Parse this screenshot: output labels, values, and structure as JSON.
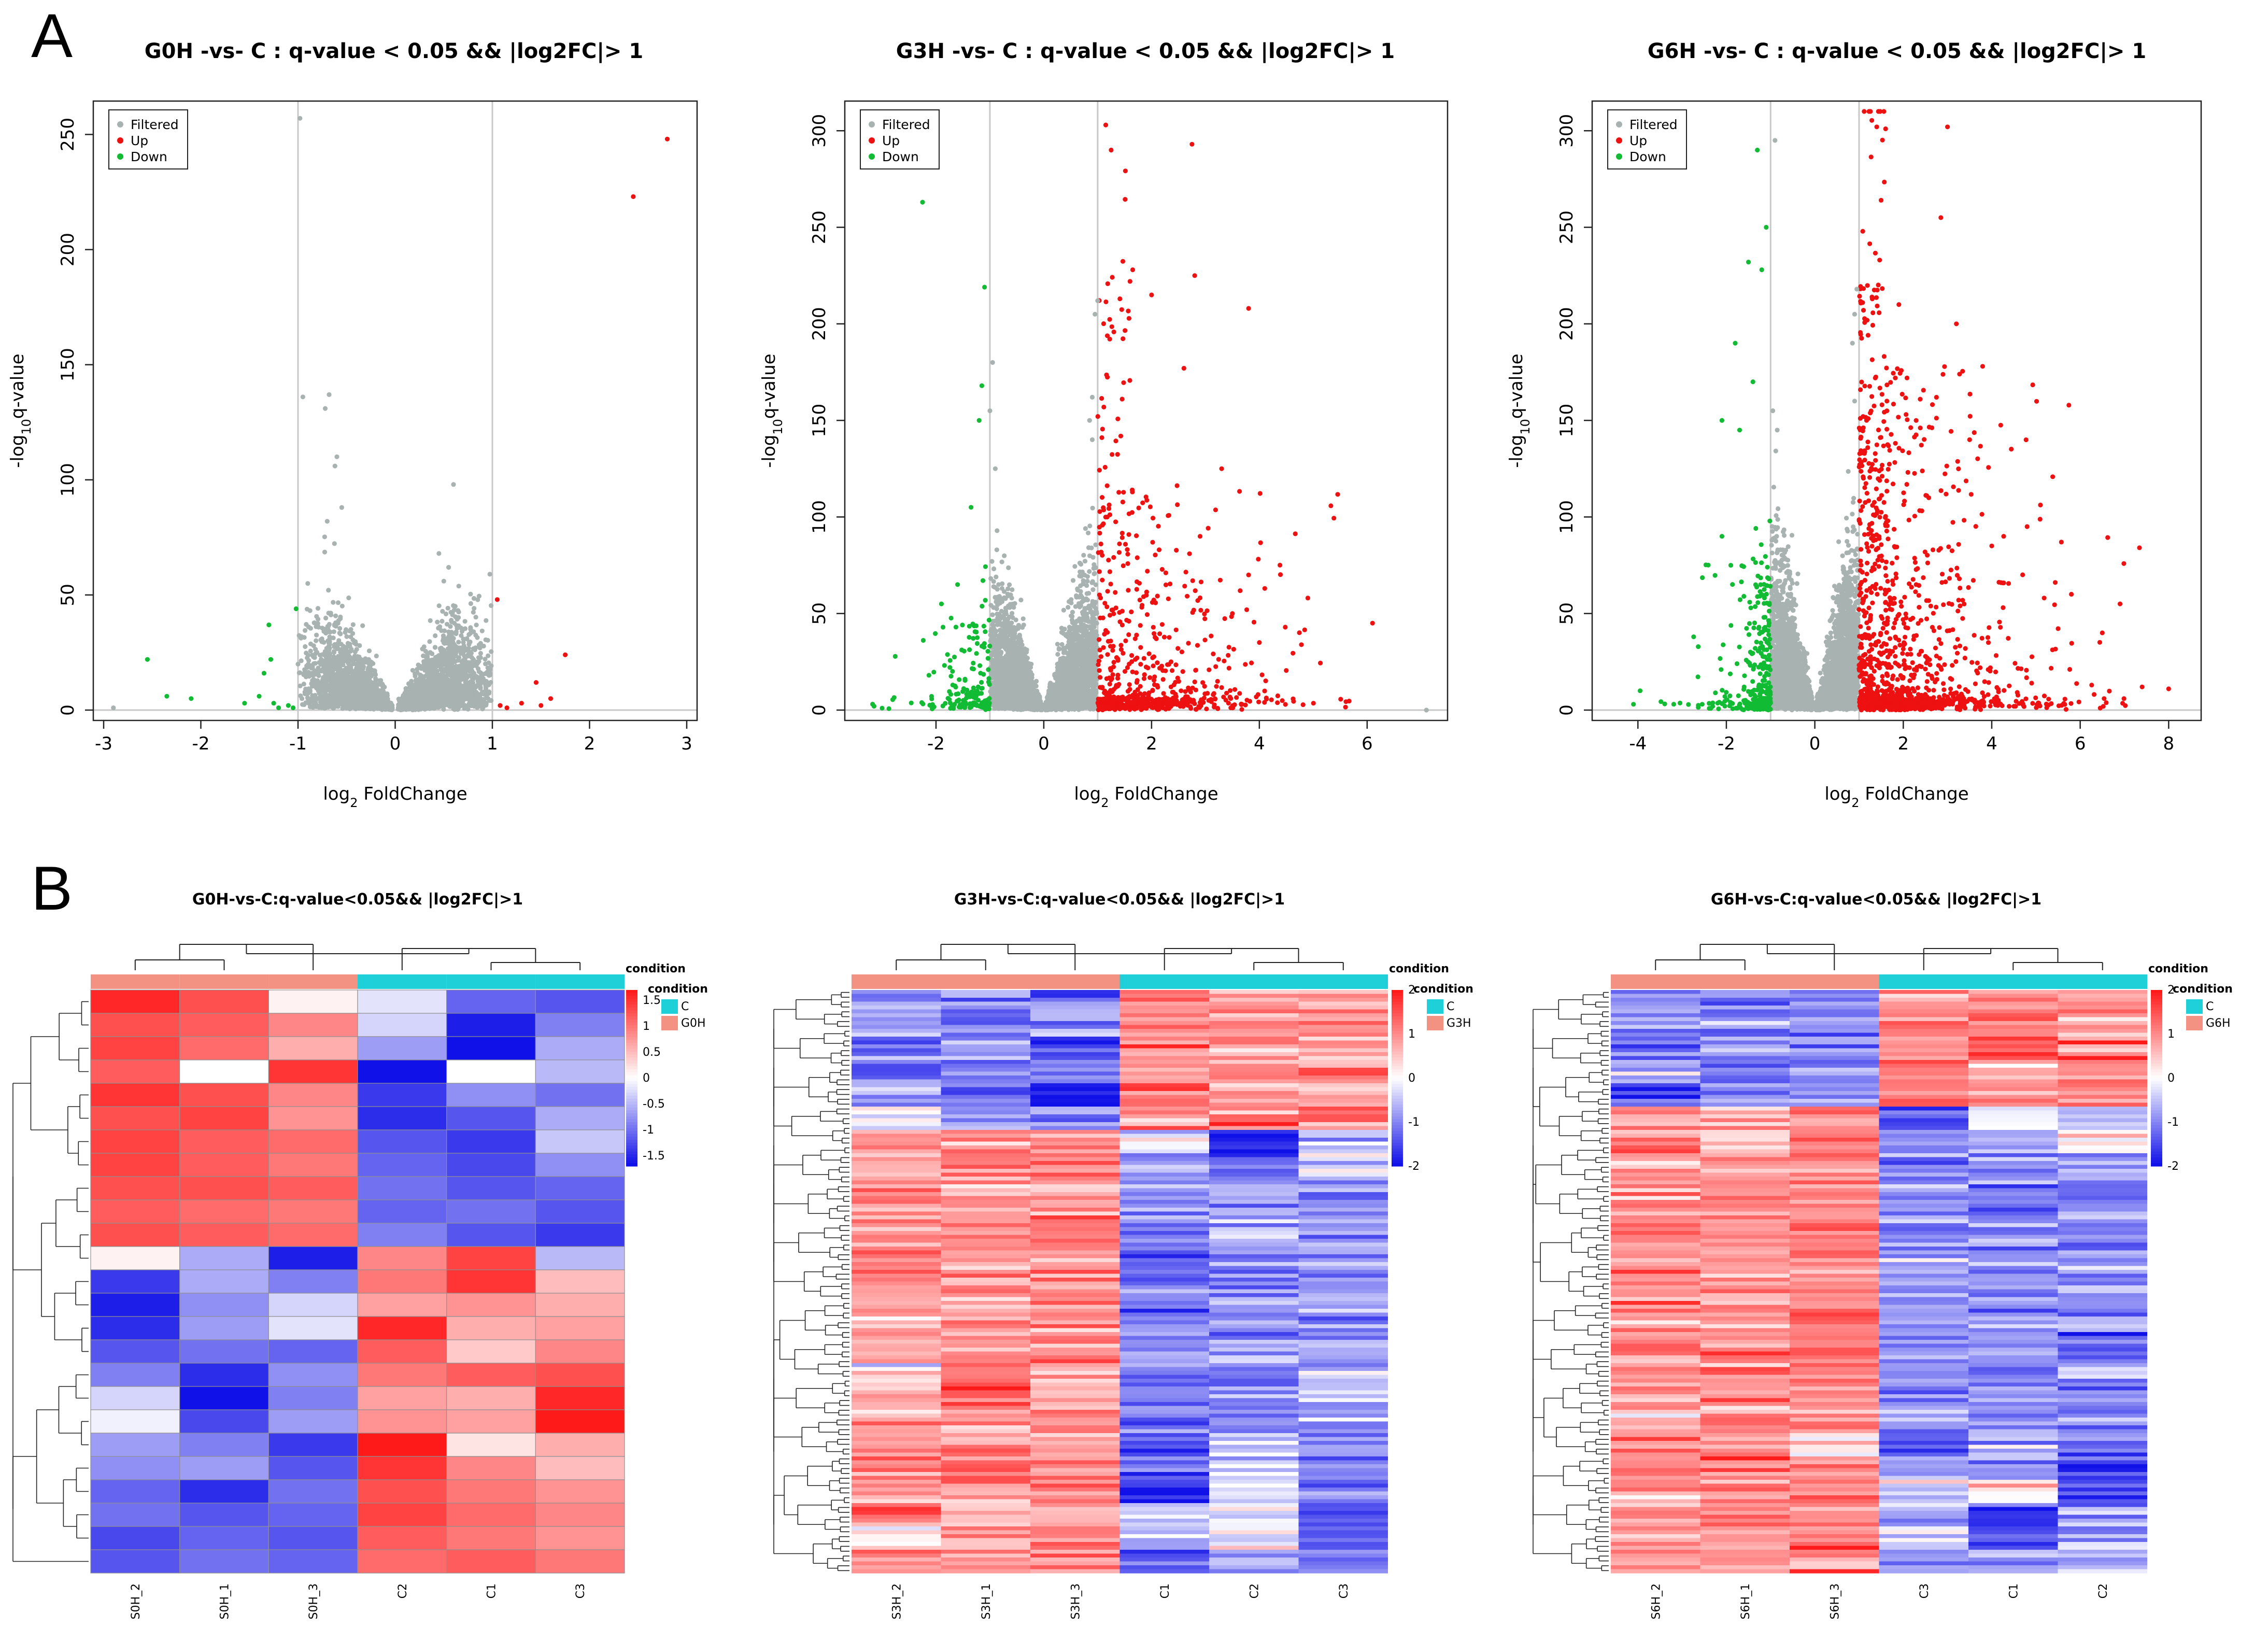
{
  "panel_labels": {
    "a": "A",
    "b": "B"
  },
  "colors": {
    "filtered": "#a8b2b0",
    "up": "#ee1111",
    "down": "#11bb33",
    "cond_C": "#1fd0d8",
    "cond_G": "#f39183",
    "high": "#ff1a1a",
    "mid": "#ffffff",
    "low": "#1010e8"
  },
  "chart_data": [
    {
      "type": "scatter",
      "title": "G0H -vs- C : q-value < 0.05 && |log2FC|> 1",
      "xlabel": "log",
      "xlabel_sub": "2",
      "xlabel_rest": " FoldChange",
      "ylabel_pre": "-log",
      "ylabel_sub": "10",
      "ylabel_rest": "q-value",
      "xlim": [
        -3,
        3
      ],
      "ylim": [
        0,
        260
      ],
      "xticks": [
        -3,
        -2,
        -1,
        0,
        1,
        2,
        3
      ],
      "yticks": [
        0,
        50,
        100,
        150,
        200,
        250
      ],
      "threshold_lines": [
        -1,
        1
      ],
      "legend": [
        "Filtered",
        "Up",
        "Down"
      ],
      "up_points": [
        [
          2.8,
          248
        ],
        [
          2.45,
          223
        ],
        [
          1.75,
          24
        ],
        [
          1.45,
          12
        ],
        [
          1.05,
          48
        ],
        [
          1.6,
          5
        ],
        [
          1.3,
          3
        ],
        [
          1.5,
          2
        ],
        [
          1.15,
          1
        ],
        [
          1.08,
          2
        ]
      ],
      "down_points": [
        [
          -2.55,
          22
        ],
        [
          -2.35,
          6
        ],
        [
          -2.1,
          5
        ],
        [
          -1.3,
          37
        ],
        [
          -1.28,
          22
        ],
        [
          -1.35,
          16
        ],
        [
          -1.4,
          6
        ],
        [
          -1.25,
          3
        ],
        [
          -1.2,
          1
        ],
        [
          -1.55,
          3
        ],
        [
          -1.1,
          2
        ],
        [
          -1.05,
          1
        ],
        [
          -1.02,
          44
        ]
      ],
      "filtered_points": [
        [
          -0.98,
          257
        ],
        [
          -0.95,
          136
        ],
        [
          -0.68,
          137
        ],
        [
          -0.72,
          131
        ],
        [
          -0.6,
          110
        ],
        [
          -0.62,
          106
        ],
        [
          0.6,
          98
        ],
        [
          0.45,
          68
        ],
        [
          -0.55,
          88
        ],
        [
          -0.7,
          82
        ],
        [
          -0.9,
          55
        ],
        [
          0.5,
          56
        ],
        [
          0.55,
          62
        ],
        [
          -1.0,
          20
        ],
        [
          -2.9,
          1
        ]
      ],
      "cloud": {
        "seed": 11,
        "n": 3000,
        "lobes": [
          -0.45,
          0.45
        ],
        "spread": 0.3,
        "min_abs": 0.03,
        "max_abs": 0.99,
        "ymax_at": 0.55,
        "height": 42
      }
    },
    {
      "type": "scatter",
      "title": "G3H -vs- C : q-value < 0.05 && |log2FC|> 1",
      "xlabel": "log",
      "xlabel_sub": "2",
      "xlabel_rest": " FoldChange",
      "ylabel_pre": "-log",
      "ylabel_sub": "10",
      "ylabel_rest": "q-value",
      "xlim": [
        -3.5,
        7.3
      ],
      "ylim": [
        0,
        310
      ],
      "xticks": [
        -2,
        0,
        2,
        4,
        6
      ],
      "yticks": [
        0,
        50,
        100,
        150,
        200,
        250,
        300
      ],
      "threshold_lines": [
        -1,
        1
      ],
      "legend": [
        "Filtered",
        "Up",
        "Down"
      ],
      "up_points": [
        [
          1.15,
          303
        ],
        [
          1.25,
          290
        ],
        [
          2.75,
          293
        ],
        [
          2.8,
          225
        ],
        [
          1.65,
          228
        ],
        [
          1.6,
          222
        ],
        [
          3.8,
          208
        ],
        [
          2.0,
          215
        ],
        [
          3.3,
          125
        ],
        [
          4.1,
          63
        ],
        [
          3.8,
          70
        ],
        [
          4.9,
          58
        ],
        [
          6.1,
          45
        ],
        [
          4.0,
          35
        ],
        [
          2.9,
          90
        ],
        [
          3.5,
          50
        ],
        [
          2.6,
          177
        ]
      ],
      "down_points": [
        [
          -2.25,
          263
        ],
        [
          -1.1,
          219
        ],
        [
          -1.15,
          168
        ],
        [
          -1.2,
          150
        ],
        [
          -1.35,
          105
        ],
        [
          -1.6,
          65
        ],
        [
          -1.9,
          55
        ],
        [
          -3.15,
          2
        ],
        [
          -3.0,
          1
        ]
      ],
      "filtered_points": [
        [
          1.0,
          212
        ],
        [
          0.95,
          205
        ],
        [
          0.9,
          162
        ],
        [
          0.85,
          150
        ],
        [
          0.9,
          140
        ],
        [
          -0.95,
          180
        ],
        [
          -1.0,
          155
        ],
        [
          -0.9,
          125
        ],
        [
          7.1,
          0
        ]
      ],
      "cloud": {
        "seed": 23,
        "n": 4200,
        "lobes": [
          -0.55,
          0.55
        ],
        "spread": 0.35,
        "min_abs": 0.03,
        "max_abs": 0.99,
        "ymax_at": 0.8,
        "height": 70
      },
      "up_cloud": {
        "seed": 31,
        "n": 700,
        "xmin": 1.0,
        "xmax": 6.0,
        "decay": 1.2,
        "height": 70
      },
      "down_cloud": {
        "seed": 37,
        "n": 170,
        "xmin": -3.2,
        "xmax": -1.0,
        "decay": 0.8,
        "height": 45
      }
    },
    {
      "type": "scatter",
      "title": "G6H -vs- C : q-value < 0.05 && |log2FC|> 1",
      "xlabel": "log",
      "xlabel_sub": "2",
      "xlabel_rest": " FoldChange",
      "ylabel_pre": "-log",
      "ylabel_sub": "10",
      "ylabel_rest": "q-value",
      "xlim": [
        -4.8,
        8.5
      ],
      "ylim": [
        0,
        310
      ],
      "xticks": [
        -4,
        -2,
        0,
        2,
        4,
        6,
        8
      ],
      "yticks": [
        0,
        50,
        100,
        150,
        200,
        250,
        300
      ],
      "threshold_lines": [
        -1,
        1
      ],
      "legend": [
        "Filtered",
        "Up",
        "Down"
      ],
      "up_points": [
        [
          1.4,
          302
        ],
        [
          1.6,
          301
        ],
        [
          3.0,
          302
        ],
        [
          2.85,
          255
        ],
        [
          1.9,
          210
        ],
        [
          3.2,
          200
        ],
        [
          3.5,
          140
        ],
        [
          4.8,
          95
        ],
        [
          4.0,
          85
        ],
        [
          6.9,
          55
        ],
        [
          5.8,
          60
        ],
        [
          6.5,
          40
        ],
        [
          7.4,
          12
        ],
        [
          8.0,
          11
        ]
      ],
      "down_points": [
        [
          -1.3,
          290
        ],
        [
          -1.1,
          250
        ],
        [
          -1.2,
          228
        ],
        [
          -1.5,
          232
        ],
        [
          -1.8,
          190
        ],
        [
          -1.4,
          170
        ],
        [
          -2.1,
          150
        ],
        [
          -1.7,
          145
        ],
        [
          -2.1,
          90
        ],
        [
          -1.9,
          75
        ],
        [
          -3.95,
          10
        ],
        [
          -4.1,
          3
        ]
      ],
      "filtered_points": [
        [
          -0.9,
          295
        ],
        [
          0.95,
          218
        ],
        [
          0.9,
          205
        ],
        [
          0.85,
          190
        ],
        [
          -0.95,
          155
        ],
        [
          -0.85,
          145
        ],
        [
          0.9,
          160
        ]
      ],
      "cloud": {
        "seed": 41,
        "n": 4600,
        "lobes": [
          -0.6,
          0.6
        ],
        "spread": 0.33,
        "min_abs": 0.03,
        "max_abs": 0.99,
        "ymax_at": 0.85,
        "height": 90
      },
      "up_cloud": {
        "seed": 53,
        "n": 1300,
        "xmin": 1.0,
        "xmax": 8.0,
        "decay": 1.3,
        "height": 110
      },
      "down_cloud": {
        "seed": 59,
        "n": 300,
        "xmin": -4.0,
        "xmax": -1.0,
        "decay": 0.7,
        "height": 75
      }
    },
    {
      "type": "heatmap",
      "title": "G0H-vs-C:q-value<0.05&& |log2FC|>1",
      "legend_title": "condition",
      "legend_entries": [
        "C",
        "G0H"
      ],
      "samples": [
        "S0H_2",
        "S0H_1",
        "S0H_3",
        "C2",
        "C1",
        "C3"
      ],
      "sample_groups": [
        "G",
        "G",
        "G",
        "C",
        "C",
        "C"
      ],
      "scale_ticks": [
        1.5,
        1,
        0.5,
        0,
        -0.5,
        -1,
        -1.5
      ],
      "scale_labels": [
        "1.5",
        "1",
        "0.5",
        "0",
        "-0.5",
        "-1",
        "-1.5"
      ],
      "zlim": [
        -1.7,
        1.7
      ],
      "values": [
        [
          1.6,
          1.3,
          0.1,
          -0.2,
          -1.1,
          -1.2
        ],
        [
          1.3,
          1.2,
          0.9,
          -0.3,
          -1.6,
          -0.9
        ],
        [
          1.4,
          1.1,
          0.6,
          -0.7,
          -1.7,
          -0.6
        ],
        [
          1.2,
          0.0,
          1.5,
          -1.8,
          0.0,
          -0.5
        ],
        [
          1.5,
          1.3,
          0.9,
          -1.4,
          -0.8,
          -1.0
        ],
        [
          1.3,
          1.4,
          0.8,
          -1.5,
          -1.2,
          -0.6
        ],
        [
          1.4,
          1.2,
          1.1,
          -1.2,
          -1.4,
          -0.4
        ],
        [
          1.4,
          1.2,
          1.0,
          -1.1,
          -1.3,
          -0.8
        ],
        [
          1.3,
          1.3,
          1.2,
          -1.0,
          -1.2,
          -1.1
        ],
        [
          1.2,
          1.1,
          1.0,
          -1.1,
          -1.0,
          -1.2
        ],
        [
          1.3,
          1.2,
          1.1,
          -0.9,
          -1.2,
          -1.4
        ],
        [
          0.1,
          -0.6,
          -1.6,
          0.9,
          1.4,
          -0.5
        ],
        [
          -1.4,
          -0.6,
          -0.9,
          1.0,
          1.5,
          0.5
        ],
        [
          -1.6,
          -0.8,
          -0.3,
          0.7,
          0.8,
          0.6
        ],
        [
          -1.5,
          -0.7,
          -0.2,
          1.6,
          0.6,
          0.7
        ],
        [
          -1.2,
          -1.0,
          -1.1,
          1.2,
          0.4,
          0.9
        ],
        [
          -0.9,
          -1.5,
          -0.8,
          1.0,
          1.2,
          1.3
        ],
        [
          -0.3,
          -1.8,
          -0.9,
          0.7,
          0.6,
          1.6
        ],
        [
          -0.1,
          -1.3,
          -0.7,
          0.8,
          0.7,
          1.7
        ],
        [
          -0.7,
          -0.9,
          -1.4,
          1.9,
          0.2,
          0.6
        ],
        [
          -0.8,
          -0.7,
          -1.2,
          1.5,
          0.9,
          0.5
        ],
        [
          -1.1,
          -1.5,
          -1.0,
          1.3,
          1.0,
          0.8
        ],
        [
          -1.0,
          -1.2,
          -1.1,
          1.4,
          1.1,
          0.9
        ],
        [
          -1.3,
          -1.1,
          -1.2,
          1.2,
          1.0,
          0.8
        ],
        [
          -1.2,
          -1.0,
          -1.1,
          1.1,
          1.2,
          1.0
        ]
      ]
    },
    {
      "type": "heatmap",
      "title": "G3H-vs-C:q-value<0.05&& |log2FC|>1",
      "legend_title": "condition",
      "legend_entries": [
        "C",
        "G3H"
      ],
      "samples": [
        "S3H_2",
        "S3H_1",
        "S3H_3",
        "C1",
        "C2",
        "C3"
      ],
      "sample_groups": [
        "G",
        "G",
        "G",
        "C",
        "C",
        "C"
      ],
      "scale_ticks": [
        2,
        1,
        0,
        -1,
        -2
      ],
      "scale_labels": [
        "2",
        "1",
        "0",
        "-1",
        "-2"
      ],
      "zlim": [
        -2,
        2
      ],
      "values": [
        [
          -1.0,
          -0.9,
          -1.0,
          0.9,
          1.0,
          0.8
        ],
        [
          -0.8,
          -1.1,
          -0.9,
          1.1,
          0.8,
          0.9
        ],
        [
          -1.2,
          -0.7,
          -1.3,
          0.8,
          1.0,
          0.7
        ],
        [
          -1.0,
          -0.9,
          -1.0,
          1.0,
          0.9,
          1.0
        ],
        [
          -0.7,
          -1.3,
          -1.8,
          1.2,
          0.7,
          0.6
        ],
        [
          -0.3,
          -1.0,
          -0.8,
          0.9,
          1.3,
          1.0
        ],
        [
          0.9,
          1.0,
          0.8,
          -0.1,
          -1.9,
          -0.6
        ],
        [
          1.0,
          0.9,
          1.0,
          -0.6,
          -1.2,
          -0.3
        ],
        [
          1.1,
          1.0,
          0.9,
          -0.8,
          -0.7,
          -0.9
        ],
        [
          1.0,
          1.1,
          1.0,
          -0.9,
          -0.8,
          -1.0
        ],
        [
          0.9,
          1.0,
          1.1,
          -1.0,
          -0.6,
          -0.9
        ],
        [
          1.0,
          0.9,
          1.0,
          -1.1,
          -0.9,
          -0.8
        ],
        [
          1.1,
          1.0,
          0.9,
          -0.9,
          -1.0,
          -0.9
        ],
        [
          1.0,
          1.0,
          1.0,
          -1.0,
          -0.9,
          -0.8
        ],
        [
          0.9,
          1.1,
          1.0,
          -0.8,
          -1.1,
          -1.0
        ],
        [
          1.0,
          0.9,
          1.1,
          -1.0,
          -0.8,
          -0.9
        ],
        [
          0.3,
          1.2,
          0.8,
          -1.3,
          -1.0,
          -0.7
        ],
        [
          0.9,
          1.3,
          0.6,
          -1.1,
          -0.9,
          -0.5
        ],
        [
          1.0,
          0.9,
          1.0,
          -0.9,
          -0.8,
          -1.0
        ],
        [
          1.1,
          1.0,
          0.9,
          -1.5,
          -0.4,
          -0.9
        ],
        [
          1.0,
          1.1,
          1.0,
          -1.3,
          -0.3,
          -0.8
        ],
        [
          0.9,
          1.0,
          1.0,
          -1.8,
          -0.5,
          -1.0
        ],
        [
          1.4,
          0.6,
          0.9,
          -0.5,
          -0.2,
          -1.4
        ],
        [
          0.2,
          0.8,
          1.0,
          -0.6,
          -0.1,
          -1.3
        ],
        [
          1.0,
          0.9,
          1.0,
          -1.2,
          -0.9,
          -1.1
        ]
      ]
    },
    {
      "type": "heatmap",
      "title": "G6H-vs-C:q-value<0.05&& |log2FC|>1",
      "legend_title": "condition",
      "legend_entries": [
        "C",
        "G6H"
      ],
      "samples": [
        "S6H_2",
        "S6H_1",
        "S6H_3",
        "C3",
        "C1",
        "C2"
      ],
      "sample_groups": [
        "G",
        "G",
        "G",
        "C",
        "C",
        "C"
      ],
      "scale_ticks": [
        2,
        1,
        0,
        -1,
        -2
      ],
      "scale_labels": [
        "2",
        "1",
        "0",
        "-1",
        "-2"
      ],
      "zlim": [
        -2,
        2
      ],
      "values": [
        [
          -1.0,
          -0.9,
          -1.2,
          1.0,
          0.9,
          1.1
        ],
        [
          -0.9,
          -1.1,
          -1.0,
          1.1,
          1.0,
          0.9
        ],
        [
          -1.1,
          -0.8,
          -1.0,
          0.9,
          1.1,
          1.0
        ],
        [
          -0.8,
          -1.0,
          -1.1,
          1.0,
          0.8,
          1.1
        ],
        [
          -1.4,
          -1.0,
          -0.9,
          1.1,
          1.0,
          0.9
        ],
        [
          1.0,
          0.9,
          1.1,
          -1.6,
          -0.6,
          -0.4
        ],
        [
          1.1,
          0.5,
          1.0,
          -1.2,
          -0.8,
          0.3
        ],
        [
          0.9,
          1.0,
          1.0,
          -0.9,
          -1.0,
          -0.8
        ],
        [
          1.0,
          1.1,
          0.9,
          -1.0,
          -0.9,
          -1.0
        ],
        [
          1.1,
          1.0,
          1.0,
          -0.8,
          -1.0,
          -0.9
        ],
        [
          0.9,
          1.0,
          1.1,
          -1.0,
          -0.8,
          -1.1
        ],
        [
          1.0,
          0.9,
          1.0,
          -0.9,
          -1.1,
          -0.9
        ],
        [
          1.1,
          1.0,
          0.9,
          -1.0,
          -1.0,
          -0.8
        ],
        [
          1.0,
          1.1,
          1.0,
          -0.9,
          -0.9,
          -1.0
        ],
        [
          0.9,
          1.0,
          1.0,
          -1.1,
          -1.0,
          -0.9
        ],
        [
          1.0,
          0.9,
          1.1,
          -1.0,
          -0.8,
          -1.0
        ],
        [
          1.1,
          1.0,
          1.0,
          -0.8,
          -1.1,
          -0.9
        ],
        [
          1.0,
          1.0,
          0.9,
          -1.0,
          -0.9,
          -1.1
        ],
        [
          0.9,
          1.1,
          1.0,
          -0.9,
          -1.0,
          -0.8
        ],
        [
          1.0,
          1.0,
          0.3,
          -1.1,
          -0.6,
          -1.3
        ],
        [
          1.1,
          0.9,
          1.0,
          -0.6,
          -1.0,
          -1.4
        ],
        [
          1.0,
          1.0,
          1.1,
          -0.4,
          0.2,
          -1.6
        ],
        [
          0.8,
          1.1,
          1.0,
          -0.5,
          -1.8,
          -0.9
        ],
        [
          1.0,
          0.9,
          1.0,
          -0.2,
          -1.5,
          -0.7
        ],
        [
          1.0,
          1.0,
          0.9,
          -0.9,
          -1.1,
          -0.8
        ]
      ]
    }
  ]
}
